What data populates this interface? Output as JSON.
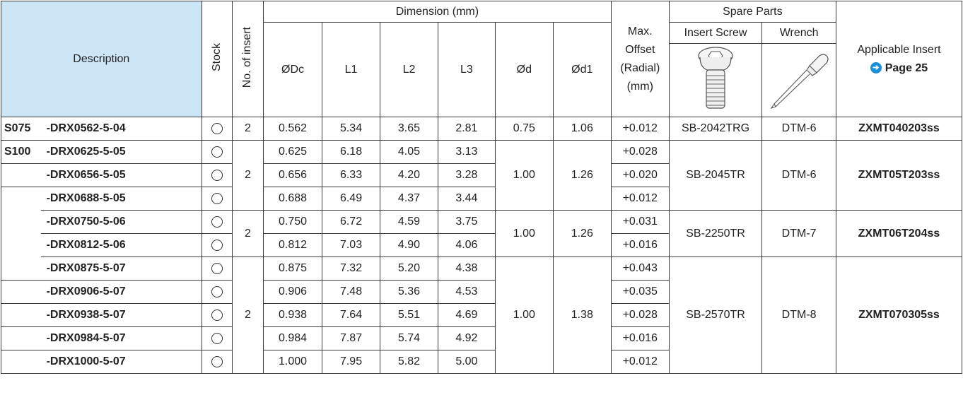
{
  "header": {
    "description": "Description",
    "stock": "Stock",
    "no_of_insert": "No. of insert",
    "dimension": "Dimension (mm)",
    "dims": [
      "ØDc",
      "L1",
      "L2",
      "L3",
      "Ød",
      "Ød1"
    ],
    "max_offset": [
      "Max.",
      "Offset",
      "(Radial)",
      "(mm)"
    ],
    "spare_parts": "Spare Parts",
    "insert_screw": "Insert Screw",
    "wrench": "Wrench",
    "applicable_insert": "Applicable Insert",
    "page_ref": "Page 25",
    "icons": {
      "screw": "torx-screw-icon",
      "wrench": "screwdriver-wrench-icon",
      "arrow": "arrow-right-circle-icon"
    }
  },
  "stock_symbol": "○",
  "groups": [
    {
      "series": "S075",
      "inserts": "2",
      "d": "0.75",
      "d1": "1.06",
      "screw": "SB-2042TRG",
      "wrench": "DTM-6",
      "insert": "ZXMT040203ss",
      "rows": [
        {
          "model": "-DRX0562-5-04",
          "dc": "0.562",
          "l1": "5.34",
          "l2": "3.65",
          "l3": "2.81",
          "offset": "+0.012"
        }
      ]
    },
    {
      "series": "S100",
      "inserts": "2",
      "d": "1.00",
      "d1": "1.26",
      "screw": "SB-2045TR",
      "wrench": "DTM-6",
      "insert": "ZXMT05T203ss",
      "rows": [
        {
          "model": "-DRX0625-5-05",
          "dc": "0.625",
          "l1": "6.18",
          "l2": "4.05",
          "l3": "3.13",
          "offset": "+0.028"
        },
        {
          "model": "-DRX0656-5-05",
          "dc": "0.656",
          "l1": "6.33",
          "l2": "4.20",
          "l3": "3.28",
          "offset": "+0.020"
        },
        {
          "model": "-DRX0688-5-05",
          "dc": "0.688",
          "l1": "6.49",
          "l2": "4.37",
          "l3": "3.44",
          "offset": "+0.012"
        }
      ]
    },
    {
      "series": "",
      "inserts": "2",
      "d": "1.00",
      "d1": "1.26",
      "screw": "SB-2250TR",
      "wrench": "DTM-7",
      "insert": "ZXMT06T204ss",
      "rows": [
        {
          "model": "-DRX0750-5-06",
          "dc": "0.750",
          "l1": "6.72",
          "l2": "4.59",
          "l3": "3.75",
          "offset": "+0.031"
        },
        {
          "model": "-DRX0812-5-06",
          "dc": "0.812",
          "l1": "7.03",
          "l2": "4.90",
          "l3": "4.06",
          "offset": "+0.016"
        }
      ]
    },
    {
      "series": "",
      "inserts": "2",
      "d": "1.00",
      "d1": "1.38",
      "screw": "SB-2570TR",
      "wrench": "DTM-8",
      "insert": "ZXMT070305ss",
      "rows": [
        {
          "model": "-DRX0875-5-07",
          "dc": "0.875",
          "l1": "7.32",
          "l2": "5.20",
          "l3": "4.38",
          "offset": "+0.043"
        },
        {
          "model": "-DRX0906-5-07",
          "dc": "0.906",
          "l1": "7.48",
          "l2": "5.36",
          "l3": "4.53",
          "offset": "+0.035"
        },
        {
          "model": "-DRX0938-5-07",
          "dc": "0.938",
          "l1": "7.64",
          "l2": "5.51",
          "l3": "4.69",
          "offset": "+0.028"
        },
        {
          "model": "-DRX0984-5-07",
          "dc": "0.984",
          "l1": "7.87",
          "l2": "5.74",
          "l3": "4.92",
          "offset": "+0.016"
        },
        {
          "model": "-DRX1000-5-07",
          "dc": "1.000",
          "l1": "7.95",
          "l2": "5.82",
          "l3": "5.00",
          "offset": "+0.012"
        }
      ]
    }
  ]
}
